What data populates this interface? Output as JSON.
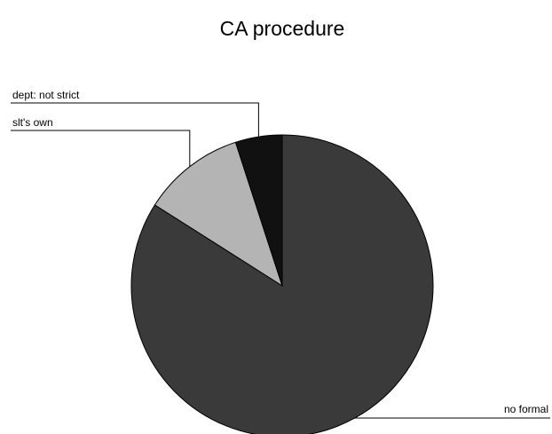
{
  "chart_data": {
    "type": "pie",
    "title": "CA procedure",
    "categories": [
      "no formal",
      "slt's own",
      "dept: not strict"
    ],
    "values": [
      84,
      11,
      5
    ],
    "colors": [
      "#3a3a3a",
      "#b4b4b4",
      "#111111"
    ]
  }
}
